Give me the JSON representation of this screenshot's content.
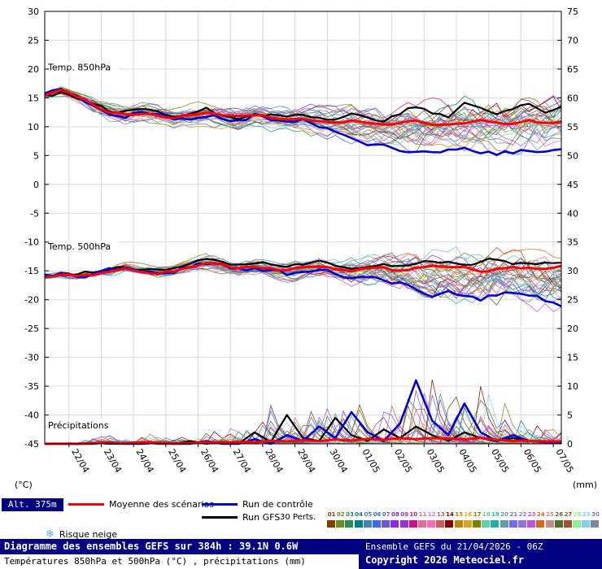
{
  "chart_data": {
    "type": "line",
    "title": "Diagramme des ensembles GEFS sur 384h : 39.1N 0.6W",
    "subtitle": "Températures 850hPa et 500hPa (°C) , précipitations (mm)",
    "x_hours_max": 384,
    "date_ticks": {
      "first_hour": 18,
      "interval_hours": 24,
      "labels": [
        "22/04",
        "23/04",
        "24/04",
        "25/04",
        "26/04",
        "27/04",
        "28/04",
        "29/04",
        "30/04",
        "01/05",
        "02/05",
        "03/05",
        "04/05",
        "05/05",
        "06/05",
        "07/05"
      ]
    },
    "left_axis": {
      "unit": "(°C)",
      "min": -45,
      "max": 30,
      "ticks": [
        30,
        25,
        20,
        15,
        10,
        5,
        0,
        -5,
        -10,
        -15,
        -20,
        -25,
        -30,
        -35,
        -40,
        -45
      ]
    },
    "right_axis": {
      "unit": "(mm)",
      "min": 0,
      "max": 75,
      "ticks": [
        75,
        70,
        65,
        60,
        55,
        50,
        45,
        40,
        35,
        30,
        25,
        20,
        15,
        10,
        5,
        0
      ]
    },
    "colors": {
      "mean": "#ff0000",
      "control": "#0000cc",
      "gfs": "#000000",
      "grid": "#d9d9d9",
      "frame": "#000000",
      "navy": "#000080",
      "snow": "#55aaff"
    },
    "panels": [
      {
        "name": "Temp. 850hPa",
        "axis": "left",
        "label_at": 19.8,
        "mean": [
          15.5,
          16.3,
          15.3,
          14.0,
          12.6,
          12.2,
          12.4,
          12.0,
          11.6,
          12.0,
          12.4,
          12.0,
          11.6,
          12.0,
          11.6,
          11.2,
          11.5,
          11.0,
          10.6,
          11.0,
          10.6,
          10.2,
          10.6,
          11.0,
          10.6,
          10.2,
          10.6,
          11.0,
          10.6,
          10.4,
          11.0,
          10.6,
          11.0
        ],
        "control": [
          15.5,
          16.5,
          15.4,
          13.8,
          12.4,
          12.0,
          12.6,
          12.0,
          11.2,
          11.6,
          12.2,
          11.6,
          11.0,
          12.0,
          11.2,
          10.6,
          11.0,
          10.0,
          9.0,
          8.2,
          7.2,
          6.6,
          6.0,
          5.6,
          5.2,
          5.6,
          6.2,
          5.6,
          5.2,
          5.6,
          6.0,
          5.4,
          5.8
        ],
        "gfs": [
          15.5,
          16.0,
          15.2,
          13.6,
          12.8,
          12.6,
          13.0,
          12.6,
          12.2,
          12.6,
          13.0,
          12.2,
          11.8,
          12.6,
          12.2,
          11.8,
          12.2,
          11.6,
          11.2,
          12.2,
          11.6,
          11.2,
          12.6,
          13.6,
          12.2,
          11.6,
          14.4,
          13.0,
          12.2,
          13.2,
          14.0,
          12.6,
          13.4
        ],
        "env_min": [
          14.8,
          15.2,
          14.2,
          12.4,
          10.8,
          10.2,
          10.6,
          10.0,
          9.6,
          9.6,
          10.0,
          9.6,
          9.0,
          9.6,
          9.0,
          8.6,
          8.6,
          8.0,
          7.6,
          7.0,
          6.6,
          6.0,
          5.6,
          5.0,
          5.0,
          5.0,
          5.0,
          5.0,
          4.6,
          5.0,
          5.0,
          4.6,
          5.0
        ],
        "env_max": [
          16.2,
          17.4,
          16.4,
          15.2,
          14.6,
          14.0,
          14.4,
          14.0,
          13.6,
          14.0,
          14.6,
          14.0,
          13.6,
          14.4,
          14.0,
          13.6,
          14.0,
          14.0,
          13.6,
          14.0,
          14.0,
          14.4,
          14.6,
          15.0,
          15.0,
          15.0,
          15.6,
          16.0,
          15.6,
          15.6,
          16.0,
          15.6,
          16.4
        ]
      },
      {
        "name": "Temp. 500hPa",
        "axis": "left",
        "label_at": -11.3,
        "mean": [
          -16.0,
          -15.6,
          -16.0,
          -15.6,
          -15.0,
          -14.6,
          -15.0,
          -15.4,
          -15.0,
          -14.2,
          -13.6,
          -14.0,
          -14.6,
          -14.2,
          -14.6,
          -15.0,
          -14.6,
          -14.2,
          -14.6,
          -15.0,
          -14.6,
          -14.6,
          -15.0,
          -14.6,
          -14.2,
          -14.6,
          -14.6,
          -15.0,
          -14.6,
          -14.2,
          -14.6,
          -14.6,
          -14.2
        ],
        "control": [
          -16.0,
          -15.6,
          -16.0,
          -15.6,
          -15.0,
          -14.6,
          -15.0,
          -15.4,
          -15.0,
          -14.2,
          -13.6,
          -14.2,
          -15.0,
          -14.6,
          -15.0,
          -15.6,
          -15.0,
          -14.6,
          -15.2,
          -16.0,
          -15.6,
          -16.2,
          -17.0,
          -18.0,
          -19.0,
          -18.4,
          -19.6,
          -20.0,
          -19.0,
          -18.6,
          -19.2,
          -20.2,
          -21.0
        ],
        "gfs": [
          -16.0,
          -15.6,
          -16.0,
          -15.4,
          -14.8,
          -14.4,
          -14.6,
          -15.0,
          -14.6,
          -13.6,
          -13.0,
          -13.6,
          -14.0,
          -13.6,
          -14.0,
          -14.6,
          -14.0,
          -13.6,
          -14.0,
          -14.6,
          -14.0,
          -13.6,
          -14.0,
          -13.6,
          -13.0,
          -13.6,
          -14.0,
          -13.6,
          -13.0,
          -13.6,
          -14.0,
          -14.0,
          -13.6
        ],
        "env_min": [
          -16.6,
          -16.2,
          -16.6,
          -16.2,
          -16.0,
          -15.6,
          -16.0,
          -16.4,
          -16.0,
          -15.6,
          -15.0,
          -15.6,
          -16.4,
          -16.0,
          -16.6,
          -17.0,
          -16.6,
          -16.6,
          -17.0,
          -18.0,
          -18.0,
          -18.6,
          -19.0,
          -20.0,
          -21.0,
          -20.6,
          -21.6,
          -22.0,
          -22.0,
          -21.0,
          -22.0,
          -23.0,
          -24.0
        ],
        "env_max": [
          -15.2,
          -14.8,
          -15.2,
          -14.8,
          -14.2,
          -13.2,
          -13.6,
          -14.0,
          -13.6,
          -12.6,
          -12.0,
          -12.6,
          -13.0,
          -12.6,
          -13.0,
          -13.0,
          -12.6,
          -12.0,
          -12.6,
          -12.0,
          -11.6,
          -11.0,
          -11.6,
          -10.6,
          -10.0,
          -10.6,
          -11.0,
          -10.6,
          -10.0,
          -10.6,
          -11.0,
          -11.6,
          -10.0
        ]
      },
      {
        "name": "Précipitations",
        "axis": "right",
        "label_at": -42.3,
        "mean": [
          0,
          0,
          0,
          0.1,
          0.2,
          0.1,
          0.3,
          0.2,
          0.1,
          0.2,
          0.3,
          0.2,
          0.4,
          0.3,
          0.5,
          0.4,
          0.6,
          0.5,
          0.8,
          0.6,
          0.9,
          0.7,
          1.0,
          0.8,
          1.0,
          0.9,
          0.8,
          1.0,
          0.7,
          0.5,
          0.5,
          0.4,
          0.4
        ],
        "control": [
          0,
          0,
          0,
          0,
          0.3,
          0,
          0,
          0.2,
          0,
          0,
          0.5,
          0,
          0,
          0.8,
          0,
          1.5,
          0.5,
          3.0,
          1.0,
          5.5,
          2.0,
          0.5,
          3.5,
          11.0,
          4.0,
          1.5,
          7.0,
          2.0,
          0.5,
          1.5,
          0.5,
          0.3,
          0.2
        ],
        "gfs": [
          0,
          0,
          0,
          0.2,
          0,
          0,
          0.3,
          0,
          0,
          0.5,
          0,
          0.3,
          0,
          2.0,
          0.3,
          5.0,
          1.0,
          0.5,
          4.5,
          1.5,
          0.5,
          2.5,
          1.0,
          3.0,
          1.5,
          0.5,
          2.0,
          1.0,
          0.5,
          1.0,
          0.5,
          0.5,
          0.3
        ],
        "env_max": [
          0.3,
          0.2,
          0.3,
          1.5,
          2.5,
          1.0,
          2.0,
          1.5,
          1.0,
          2.0,
          3.0,
          2.5,
          4.0,
          5.0,
          7.0,
          6.0,
          9.0,
          7.0,
          10.0,
          8.0,
          12.0,
          9.0,
          14.0,
          11.0,
          16.0,
          12.0,
          10.0,
          17.0,
          8.0,
          6.0,
          5.0,
          4.0,
          3.0
        ]
      }
    ]
  },
  "legend": {
    "alt_label": "Alt. 375m",
    "items": {
      "mean": "Moyenne des scénarios",
      "control": "Run de contrôle",
      "gfs": "Run GFS"
    },
    "perts_label": "30 Perts.",
    "snow_icon": "❄",
    "snow_label": "Risque neige",
    "pert_numbers": [
      "01",
      "02",
      "03",
      "04",
      "05",
      "06",
      "07",
      "08",
      "09",
      "10",
      "11",
      "12",
      "13",
      "14",
      "15",
      "16",
      "17",
      "18",
      "19",
      "20",
      "21",
      "22",
      "23",
      "24",
      "25",
      "26",
      "27",
      "28",
      "29",
      "30"
    ],
    "pert_colors": [
      "#7f3f00",
      "#6b8e23",
      "#2e8b57",
      "#008080",
      "#4682b4",
      "#4169e1",
      "#6a5acd",
      "#8a2be2",
      "#9932cc",
      "#c71585",
      "#db7093",
      "#ff69b4",
      "#cd5c5c",
      "#8b0000",
      "#b8860b",
      "#daa520",
      "#808000",
      "#66cdaa",
      "#20b2aa",
      "#5f9ea0",
      "#7b68ee",
      "#9370db",
      "#ba55d3",
      "#d2691e",
      "#bc8f8f",
      "#556b2f",
      "#a0522d",
      "#90ee90",
      "#87ceeb",
      "#778899"
    ]
  },
  "footer": {
    "title": "Diagramme des ensembles GEFS sur 384h : 39.1N 0.6W",
    "subtitle": "Températures 850hPa et 500hPa (°C) , précipitations (mm)",
    "run_info": "Ensemble GEFS du 21/04/2026 - 06Z",
    "copyright": "Copyright 2026 Meteociel.fr"
  }
}
